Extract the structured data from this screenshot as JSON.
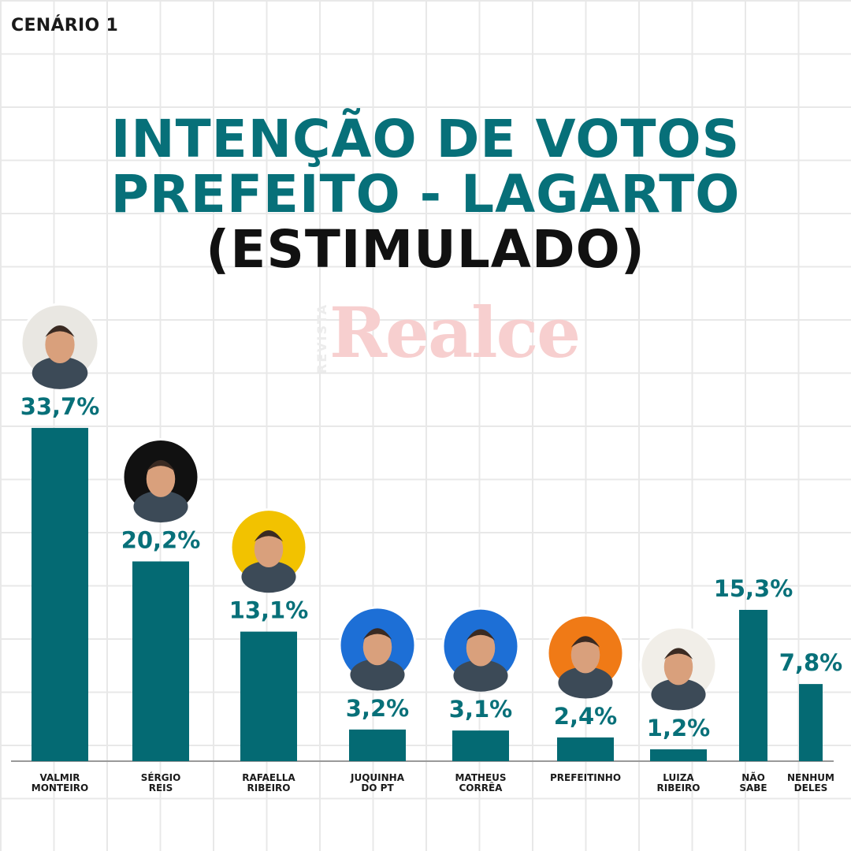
{
  "header": {
    "scenario": "CENÁRIO 1",
    "title_line1": "INTENÇÃO DE VOTOS",
    "title_line2": "PREFEITO - LAGARTO",
    "title_line3": "(ESTIMULADO)"
  },
  "watermark": {
    "side": "REVISTA",
    "main": "Realce"
  },
  "colors": {
    "bar": "#046a73",
    "accent": "#077079",
    "axis": "#999999"
  },
  "chart_data": {
    "type": "bar",
    "title": "INTENÇÃO DE VOTOS PREFEITO - LAGARTO (ESTIMULADO)",
    "xlabel": "",
    "ylabel": "",
    "ylim": [
      0,
      35
    ],
    "categories": [
      [
        "VALMIR",
        "MONTEIRO"
      ],
      [
        "SÉRGIO",
        "REIS"
      ],
      [
        "RAFAELLA",
        "RIBEIRO"
      ],
      [
        "JUQUINHA",
        "DO PT"
      ],
      [
        "MATHEUS",
        "CORRÊA"
      ],
      [
        "PREFEITINHO"
      ],
      [
        "LUIZA",
        "RIBEIRO"
      ],
      [
        "NÃO",
        "SABE"
      ],
      [
        "NENHUM",
        "DELES"
      ]
    ],
    "values": [
      33.7,
      20.2,
      13.1,
      3.2,
      3.1,
      2.4,
      1.2,
      15.3,
      7.8
    ],
    "labels": [
      "33,7%",
      "20,2%",
      "13,1%",
      "3,2%",
      "3,1%",
      "2,4%",
      "1,2%",
      "15,3%",
      "7,8%"
    ],
    "photo_backgrounds": [
      "#e9e7e2",
      "#111111",
      "#f2c200",
      "#1d6fd6",
      "#1d6fd6",
      "#f07a16",
      "#f1eee8",
      null,
      null
    ]
  }
}
